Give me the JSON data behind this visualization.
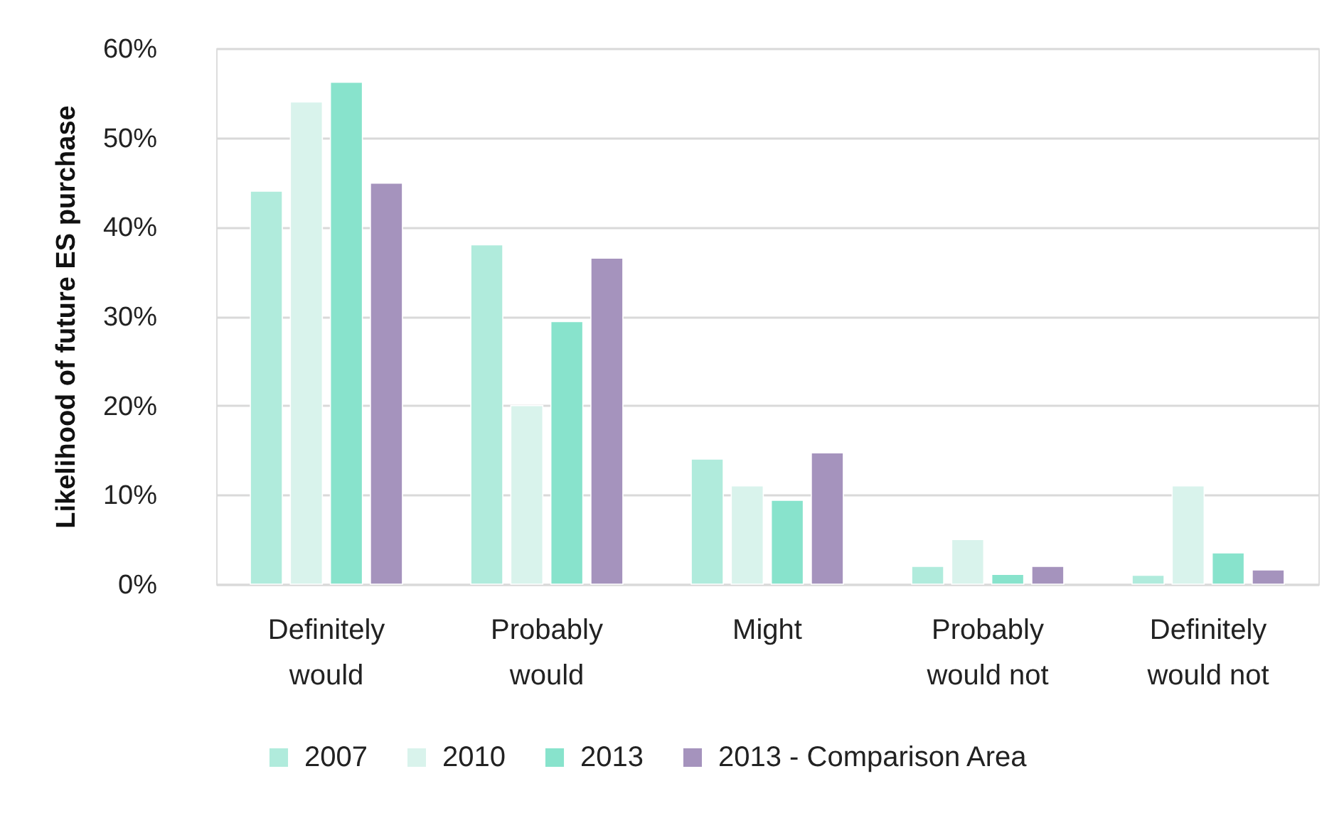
{
  "chart_data": {
    "type": "bar",
    "ylabel": "Likelihood of future ES purchase",
    "categories": [
      "Definitely would",
      "Probably would",
      "Might",
      "Probably would not",
      "Definitely would not"
    ],
    "series": [
      {
        "name": "2007",
        "color": "#b0ebdc",
        "values": [
          44,
          38,
          14,
          2,
          1
        ]
      },
      {
        "name": "2010",
        "color": "#d9f3ec",
        "values": [
          54,
          20,
          11,
          5,
          11
        ]
      },
      {
        "name": "2013",
        "color": "#88e3cc",
        "values": [
          56.2,
          29.4,
          9.4,
          1.1,
          3.5
        ]
      },
      {
        "name": "2013 - Comparison Area",
        "color": "#a593bd",
        "values": [
          44.9,
          36.5,
          14.7,
          2.0,
          1.6
        ]
      }
    ],
    "ylim": [
      0,
      60
    ],
    "yticks": [
      {
        "value": 0,
        "label": "0%"
      },
      {
        "value": 10,
        "label": "10%"
      },
      {
        "value": 20,
        "label": "20%"
      },
      {
        "value": 30,
        "label": "30%"
      },
      {
        "value": 40,
        "label": "40%"
      },
      {
        "value": 50,
        "label": "50%"
      },
      {
        "value": 60,
        "label": "60%"
      }
    ],
    "grid": "y",
    "legend": "bottom"
  }
}
